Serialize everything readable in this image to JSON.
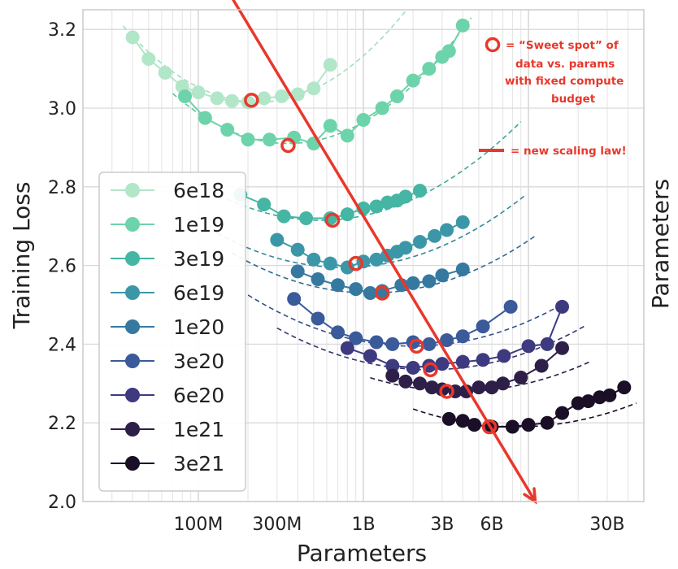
{
  "chart_data": {
    "type": "scatter",
    "xlabel": "Parameters",
    "ylabel": "Training Loss",
    "right_label": "Parameters",
    "x_scale": "log",
    "xlim": [
      20000000,
      50000000000
    ],
    "ylim": [
      2.0,
      3.25
    ],
    "grid": true,
    "x_ticks": [
      {
        "value": 100000000,
        "label": "100M"
      },
      {
        "value": 300000000,
        "label": "300M"
      },
      {
        "value": 1000000000,
        "label": "1B"
      },
      {
        "value": 3000000000,
        "label": "3B"
      },
      {
        "value": 6000000000,
        "label": "6B"
      },
      {
        "value": 30000000000,
        "label": "30B"
      }
    ],
    "y_ticks": [
      {
        "value": 2.0,
        "label": "2.0"
      },
      {
        "value": 2.2,
        "label": "2.2"
      },
      {
        "value": 2.4,
        "label": "2.4"
      },
      {
        "value": 2.6,
        "label": "2.6"
      },
      {
        "value": 2.8,
        "label": "2.8"
      },
      {
        "value": 3.0,
        "label": "3.0"
      },
      {
        "value": 3.2,
        "label": "3.2"
      }
    ],
    "legend_position": "left",
    "series": [
      {
        "name": "6e18",
        "color": "#b2e6c9",
        "fit_color": "#a5dcc0",
        "points": [
          [
            40000000,
            3.18
          ],
          [
            50000000,
            3.125
          ],
          [
            63000000,
            3.09
          ],
          [
            80000000,
            3.055
          ],
          [
            100000000,
            3.04
          ],
          [
            130000000,
            3.025
          ],
          [
            160000000,
            3.018
          ],
          [
            200000000,
            3.015
          ],
          [
            250000000,
            3.025
          ],
          [
            320000000,
            3.03
          ],
          [
            400000000,
            3.035
          ],
          [
            500000000,
            3.05
          ],
          [
            630000000,
            3.11
          ]
        ],
        "curve": {
          "min_x": 230000000,
          "min_y": 3.015,
          "k": 0.29,
          "x_start": 35000000,
          "x_end": 2000000000
        }
      },
      {
        "name": "1e19",
        "color": "#6dd3aa",
        "fit_color": "#5cc59c",
        "points": [
          [
            83000000,
            3.03
          ],
          [
            110000000,
            2.975
          ],
          [
            150000000,
            2.945
          ],
          [
            200000000,
            2.92
          ],
          [
            270000000,
            2.92
          ],
          [
            380000000,
            2.925
          ],
          [
            500000000,
            2.91
          ],
          [
            630000000,
            2.955
          ],
          [
            800000000,
            2.93
          ],
          [
            1000000000,
            2.97
          ],
          [
            1300000000,
            3.0
          ],
          [
            1600000000,
            3.03
          ],
          [
            2000000000,
            3.07
          ],
          [
            2500000000,
            3.1
          ],
          [
            3000000000,
            3.13
          ],
          [
            3300000000,
            3.145
          ],
          [
            4000000000,
            3.21
          ]
        ],
        "curve": {
          "min_x": 350000000,
          "min_y": 2.91,
          "k": 0.26,
          "x_start": 70000000,
          "x_end": 4500000000
        }
      },
      {
        "name": "3e19",
        "color": "#45b5a4",
        "fit_color": "#3fa799",
        "points": [
          [
            180000000,
            2.78
          ],
          [
            250000000,
            2.755
          ],
          [
            330000000,
            2.725
          ],
          [
            450000000,
            2.72
          ],
          [
            630000000,
            2.72
          ],
          [
            800000000,
            2.73
          ],
          [
            1000000000,
            2.745
          ],
          [
            1200000000,
            2.75
          ],
          [
            1400000000,
            2.76
          ],
          [
            1600000000,
            2.765
          ],
          [
            1800000000,
            2.775
          ],
          [
            2200000000,
            2.79
          ]
        ],
        "curve": {
          "min_x": 550000000,
          "min_y": 2.715,
          "k": 0.17,
          "x_start": 100000000,
          "x_end": 9000000000
        }
      },
      {
        "name": "6e19",
        "color": "#3b97a8",
        "fit_color": "#348798",
        "points": [
          [
            300000000,
            2.665
          ],
          [
            400000000,
            2.64
          ],
          [
            500000000,
            2.615
          ],
          [
            630000000,
            2.605
          ],
          [
            800000000,
            2.595
          ],
          [
            1000000000,
            2.61
          ],
          [
            1200000000,
            2.615
          ],
          [
            1400000000,
            2.625
          ],
          [
            1600000000,
            2.635
          ],
          [
            1800000000,
            2.645
          ],
          [
            2200000000,
            2.66
          ],
          [
            2700000000,
            2.675
          ],
          [
            3200000000,
            2.69
          ],
          [
            4000000000,
            2.71
          ]
        ],
        "curve": {
          "min_x": 750000000,
          "min_y": 2.595,
          "k": 0.15,
          "x_start": 130000000,
          "x_end": 9500000000
        }
      },
      {
        "name": "1e20",
        "color": "#3579a0",
        "fit_color": "#2e6b90",
        "points": [
          [
            400000000,
            2.585
          ],
          [
            530000000,
            2.565
          ],
          [
            700000000,
            2.55
          ],
          [
            900000000,
            2.54
          ],
          [
            1100000000,
            2.53
          ],
          [
            1300000000,
            2.535
          ],
          [
            1700000000,
            2.55
          ],
          [
            2000000000,
            2.555
          ],
          [
            2500000000,
            2.56
          ],
          [
            3000000000,
            2.575
          ],
          [
            4000000000,
            2.59
          ]
        ],
        "curve": {
          "min_x": 1100000000,
          "min_y": 2.53,
          "k": 0.145,
          "x_start": 160000000,
          "x_end": 11000000000
        }
      },
      {
        "name": "3e20",
        "color": "#3a5a9a",
        "fit_color": "#33508c",
        "points": [
          [
            380000000,
            2.515
          ],
          [
            530000000,
            2.465
          ],
          [
            700000000,
            2.43
          ],
          [
            900000000,
            2.415
          ],
          [
            1200000000,
            2.405
          ],
          [
            1500000000,
            2.4
          ],
          [
            2000000000,
            2.405
          ],
          [
            2500000000,
            2.4
          ],
          [
            3200000000,
            2.41
          ],
          [
            4000000000,
            2.42
          ],
          [
            5300000000,
            2.445
          ],
          [
            7800000000,
            2.495
          ]
        ],
        "curve": {
          "min_x": 2000000000,
          "min_y": 2.395,
          "k": 0.13,
          "x_start": 200000000,
          "x_end": 15000000000
        }
      },
      {
        "name": "6e20",
        "color": "#3e3a80",
        "fit_color": "#37346f",
        "points": [
          [
            800000000,
            2.39
          ],
          [
            1100000000,
            2.37
          ],
          [
            1500000000,
            2.345
          ],
          [
            2000000000,
            2.34
          ],
          [
            2500000000,
            2.345
          ],
          [
            3000000000,
            2.35
          ],
          [
            4000000000,
            2.355
          ],
          [
            5300000000,
            2.36
          ],
          [
            7100000000,
            2.37
          ],
          [
            10000000000,
            2.395
          ],
          [
            13000000000,
            2.4
          ],
          [
            16000000000,
            2.495
          ]
        ],
        "curve": {
          "min_x": 2500000000,
          "min_y": 2.335,
          "k": 0.125,
          "x_start": 300000000,
          "x_end": 22000000000
        }
      },
      {
        "name": "1e21",
        "color": "#2e1f48",
        "fit_color": "#2a1d42",
        "points": [
          [
            1500000000,
            2.32
          ],
          [
            1800000000,
            2.305
          ],
          [
            2200000000,
            2.3
          ],
          [
            2600000000,
            2.29
          ],
          [
            3000000000,
            2.285
          ],
          [
            3600000000,
            2.28
          ],
          [
            4200000000,
            2.28
          ],
          [
            5000000000,
            2.29
          ],
          [
            6000000000,
            2.29
          ],
          [
            7000000000,
            2.3
          ],
          [
            9000000000,
            2.315
          ],
          [
            12000000000,
            2.345
          ],
          [
            16000000000,
            2.39
          ]
        ],
        "curve": {
          "min_x": 3800000000,
          "min_y": 2.28,
          "k": 0.12,
          "x_start": 1100000000,
          "x_end": 24000000000
        }
      },
      {
        "name": "3e21",
        "color": "#1a0f26",
        "fit_color": "#1a0f26",
        "points": [
          [
            3300000000,
            2.21
          ],
          [
            4000000000,
            2.205
          ],
          [
            4700000000,
            2.195
          ],
          [
            6000000000,
            2.19
          ],
          [
            8000000000,
            2.19
          ],
          [
            10000000000,
            2.195
          ],
          [
            13000000000,
            2.2
          ],
          [
            16000000000,
            2.225
          ],
          [
            20000000000,
            2.25
          ],
          [
            23000000000,
            2.255
          ],
          [
            27000000000,
            2.265
          ],
          [
            31000000000,
            2.27
          ],
          [
            38000000000,
            2.29
          ]
        ],
        "curve": {
          "min_x": 8500000000,
          "min_y": 2.19,
          "k": 0.115,
          "x_start": 2000000000,
          "x_end": 45000000000
        }
      }
    ],
    "sweet_spots": [
      [
        210000000,
        3.02
      ],
      [
        350000000,
        2.905
      ],
      [
        650000000,
        2.715
      ],
      [
        900000000,
        2.605
      ],
      [
        1300000000,
        2.53
      ],
      [
        2100000000,
        2.395
      ],
      [
        2550000000,
        2.335
      ],
      [
        3200000000,
        2.28
      ],
      [
        5800000000,
        2.19
      ]
    ],
    "scaling_law": {
      "x_start": 150000000,
      "y_start": 3.3,
      "x_end": 11000000000,
      "y_end": 2.0
    },
    "annotations": {
      "sweet_spot": [
        "= “Sweet spot” of",
        "data vs. params",
        "with fixed compute",
        "budget"
      ],
      "scaling_law": "= new scaling law!"
    },
    "colors": {
      "highlight": "#e8382b",
      "grid": "#d9d9d9",
      "frame": "#cccccc"
    }
  }
}
